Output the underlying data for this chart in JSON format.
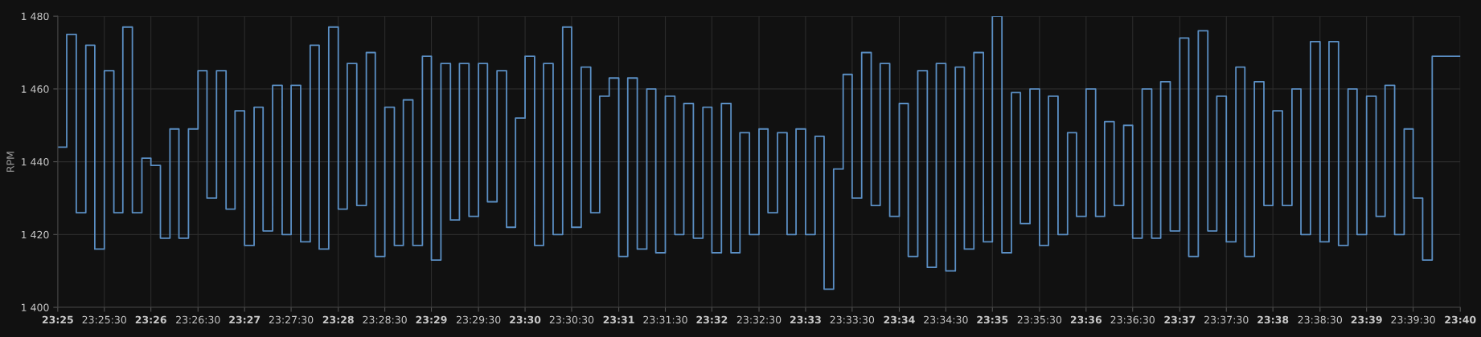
{
  "chart_data": {
    "type": "step",
    "ylabel": "RPM",
    "x": [
      23.4167,
      23.4183,
      23.42,
      23.4217,
      23.4233,
      23.425,
      23.4267,
      23.4283,
      23.43,
      23.4317,
      23.4333,
      23.435,
      23.4367,
      23.4383,
      23.44,
      23.4417,
      23.4433,
      23.445,
      23.4467,
      23.4483,
      23.45,
      23.4517,
      23.4533,
      23.455,
      23.4567,
      23.4583,
      23.46,
      23.4617,
      23.4633,
      23.465,
      23.4667,
      23.4683,
      23.47,
      23.4717,
      23.4733,
      23.475,
      23.4767,
      23.4783,
      23.48,
      23.4817,
      23.4833,
      23.485,
      23.4867,
      23.4883,
      23.49,
      23.4917,
      23.4933,
      23.495,
      23.4967,
      23.4983,
      23.5,
      23.5017,
      23.5033,
      23.505,
      23.5067,
      23.5083,
      23.51,
      23.5117,
      23.5133,
      23.515,
      23.5167,
      23.5183,
      23.52,
      23.5217,
      23.5233,
      23.525,
      23.5267,
      23.5283,
      23.53,
      23.5317,
      23.5333,
      23.535,
      23.5367,
      23.5383,
      23.54,
      23.5417,
      23.5433,
      23.545,
      23.5467,
      23.5483,
      23.55,
      23.5517,
      23.5533,
      23.555,
      23.5567,
      23.5583,
      23.56,
      23.5617,
      23.5633,
      23.565,
      23.5667,
      23.5683,
      23.57,
      23.5717,
      23.5733,
      23.575,
      23.5767,
      23.5783,
      23.58,
      23.5817,
      23.5833,
      23.585,
      23.5867,
      23.5883,
      23.59,
      23.5917,
      23.5933,
      23.595,
      23.5967,
      23.5983,
      23.6,
      23.6017,
      23.6033,
      23.605,
      23.6067,
      23.6083,
      23.61,
      23.6117,
      23.6133,
      23.615,
      23.6167,
      23.6183,
      23.62,
      23.6217,
      23.6233,
      23.625,
      23.6267,
      23.6283,
      23.63,
      23.6317,
      23.6333,
      23.635,
      23.6367,
      23.6383,
      23.64,
      23.6417,
      23.6433,
      23.645,
      23.6467,
      23.6483,
      23.65,
      23.6517,
      23.6533,
      23.655,
      23.6567,
      23.6583,
      23.66,
      23.6617,
      23.6667
    ],
    "series": [
      {
        "color": "#5b8fc4",
        "values": [
          1444,
          1475,
          1426,
          1472,
          1416,
          1465,
          1426,
          1477,
          1426,
          1441,
          1439,
          1419,
          1449,
          1419,
          1449,
          1465,
          1430,
          1465,
          1427,
          1454,
          1417,
          1455,
          1421,
          1461,
          1420,
          1461,
          1418,
          1472,
          1416,
          1477,
          1427,
          1467,
          1428,
          1470,
          1414,
          1455,
          1417,
          1457,
          1417,
          1469,
          1413,
          1467,
          1424,
          1467,
          1425,
          1467,
          1429,
          1465,
          1422,
          1452,
          1469,
          1417,
          1467,
          1420,
          1477,
          1422,
          1466,
          1426,
          1458,
          1463,
          1414,
          1463,
          1416,
          1460,
          1415,
          1458,
          1420,
          1456,
          1419,
          1455,
          1415,
          1456,
          1415,
          1448,
          1420,
          1449,
          1426,
          1448,
          1420,
          1449,
          1420,
          1447,
          1405,
          1438,
          1464,
          1430,
          1470,
          1428,
          1467,
          1425,
          1456,
          1414,
          1465,
          1411,
          1467,
          1410,
          1466,
          1416,
          1470,
          1418,
          1480,
          1415,
          1459,
          1423,
          1460,
          1417,
          1458,
          1420,
          1448,
          1425,
          1460,
          1425,
          1451,
          1428,
          1450,
          1419,
          1460,
          1419,
          1462,
          1421,
          1474,
          1414,
          1476,
          1421,
          1458,
          1418,
          1466,
          1414,
          1462,
          1428,
          1454,
          1428,
          1460,
          1420,
          1473,
          1418,
          1473,
          1417,
          1460,
          1420,
          1458,
          1425,
          1461,
          1420,
          1449,
          1430,
          1413,
          1469,
          1469
        ]
      }
    ],
    "xlim": [
      23.4167,
      23.6667
    ],
    "xticks": [
      {
        "value": 23.4167,
        "label": "23:25"
      },
      {
        "value": 23.425,
        "label": "23:25:30"
      },
      {
        "value": 23.4333,
        "label": "23:26"
      },
      {
        "value": 23.4417,
        "label": "23:26:30"
      },
      {
        "value": 23.45,
        "label": "23:27"
      },
      {
        "value": 23.4583,
        "label": "23:27:30"
      },
      {
        "value": 23.4667,
        "label": "23:28"
      },
      {
        "value": 23.475,
        "label": "23:28:30"
      },
      {
        "value": 23.4833,
        "label": "23:29"
      },
      {
        "value": 23.4917,
        "label": "23:29:30"
      },
      {
        "value": 23.5,
        "label": "23:30"
      },
      {
        "value": 23.5083,
        "label": "23:30:30"
      },
      {
        "value": 23.5167,
        "label": "23:31"
      },
      {
        "value": 23.525,
        "label": "23:31:30"
      },
      {
        "value": 23.5333,
        "label": "23:32"
      },
      {
        "value": 23.5417,
        "label": "23:32:30"
      },
      {
        "value": 23.55,
        "label": "23:33"
      },
      {
        "value": 23.5583,
        "label": "23:33:30"
      },
      {
        "value": 23.5667,
        "label": "23:34"
      },
      {
        "value": 23.575,
        "label": "23:34:30"
      },
      {
        "value": 23.5833,
        "label": "23:35"
      },
      {
        "value": 23.5917,
        "label": "23:35:30"
      },
      {
        "value": 23.6,
        "label": "23:36"
      },
      {
        "value": 23.6083,
        "label": "23:36:30"
      },
      {
        "value": 23.6167,
        "label": "23:37"
      },
      {
        "value": 23.625,
        "label": "23:37:30"
      },
      {
        "value": 23.6333,
        "label": "23:38"
      },
      {
        "value": 23.6417,
        "label": "23:38:30"
      },
      {
        "value": 23.65,
        "label": "23:39"
      },
      {
        "value": 23.6583,
        "label": "23:39:30"
      },
      {
        "value": 23.6667,
        "label": "23:40"
      }
    ],
    "ylim": [
      1400,
      1480
    ],
    "yticks": [
      {
        "value": 1400,
        "label": "1 400"
      },
      {
        "value": 1420,
        "label": "1 420"
      },
      {
        "value": 1440,
        "label": "1 440"
      },
      {
        "value": 1460,
        "label": "1 460"
      },
      {
        "value": 1480,
        "label": "1 480"
      }
    ],
    "grid": true
  }
}
